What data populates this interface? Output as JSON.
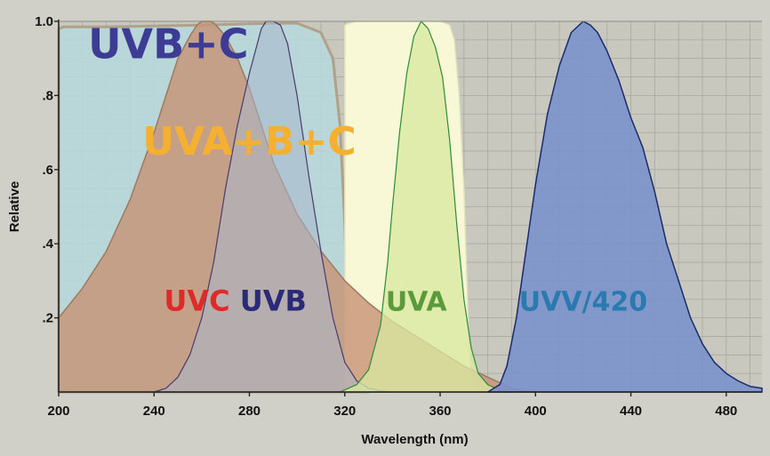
{
  "chart_data": {
    "type": "area",
    "xlabel": "Wavelength (nm)",
    "ylabel": "Relative",
    "xlim": [
      200,
      495
    ],
    "ylim": [
      0,
      1.0
    ],
    "x_ticks": [
      200,
      240,
      280,
      320,
      360,
      400,
      440,
      480
    ],
    "x_tick_labels": [
      "200",
      "240",
      "280",
      "320",
      "360",
      "400",
      "440",
      "480"
    ],
    "y_ticks": [
      0.2,
      0.4,
      0.6,
      0.8,
      1.0
    ],
    "y_tick_labels": [
      ".2",
      ".4",
      ".6",
      ".8",
      "1.0"
    ],
    "grid": true,
    "colors": {
      "background": "#d0d0c8",
      "plot_bg": "#c8c8be",
      "grid": "#a8a8a0"
    },
    "series": [
      {
        "id": "uvbc",
        "fill": "#b7d7dc",
        "stroke": "#b0a188",
        "opacity": 0.9,
        "stroke_width": 3,
        "x": [
          200,
          202,
          220,
          260,
          290,
          300,
          310,
          315,
          318,
          320,
          321,
          322,
          323,
          324,
          326,
          330
        ],
        "y": [
          0.98,
          0.985,
          0.985,
          0.99,
          0.995,
          0.995,
          0.97,
          0.9,
          0.72,
          0.45,
          0.25,
          0.12,
          0.05,
          0.02,
          0.005,
          0
        ]
      },
      {
        "id": "uvabc",
        "fill": "#fbfbd8",
        "stroke": "#e0e0bc",
        "opacity": 0.95,
        "stroke_width": 1.5,
        "x": [
          320,
          322,
          325,
          330,
          335,
          340,
          345,
          350,
          355,
          360,
          364,
          366,
          368,
          370,
          371,
          372,
          373,
          374,
          376,
          378,
          380
        ],
        "y": [
          0.99,
          0.995,
          1.0,
          1.0,
          1.0,
          1.0,
          1.0,
          1.0,
          1.0,
          1.0,
          0.99,
          0.95,
          0.8,
          0.55,
          0.35,
          0.15,
          0.05,
          0.01,
          0.003,
          0.001,
          0
        ]
      },
      {
        "id": "uvc",
        "fill": "#c89478",
        "stroke": "#9c7a62",
        "opacity": 0.82,
        "stroke_width": 1.5,
        "x": [
          200,
          210,
          220,
          230,
          240,
          245,
          250,
          255,
          258,
          260,
          264,
          266,
          270,
          275,
          280,
          285,
          290,
          300,
          310,
          320,
          330,
          340,
          350,
          360,
          370,
          380,
          390,
          395,
          400
        ],
        "y": [
          0.2,
          0.28,
          0.38,
          0.52,
          0.7,
          0.8,
          0.9,
          0.96,
          0.99,
          1.0,
          1.0,
          0.99,
          0.96,
          0.9,
          0.82,
          0.72,
          0.62,
          0.48,
          0.38,
          0.3,
          0.24,
          0.19,
          0.15,
          0.11,
          0.07,
          0.04,
          0.01,
          0.003,
          0
        ]
      },
      {
        "id": "uvb",
        "fill": "#aab8cc",
        "stroke": "#4a3a6a",
        "opacity": 0.55,
        "stroke_width": 1.2,
        "x": [
          240,
          245,
          250,
          255,
          260,
          265,
          270,
          275,
          280,
          285,
          287,
          290,
          293,
          296,
          300,
          305,
          310,
          315,
          320,
          325,
          330,
          335,
          340
        ],
        "y": [
          0,
          0.01,
          0.04,
          0.1,
          0.2,
          0.35,
          0.55,
          0.72,
          0.86,
          0.98,
          1.0,
          1.0,
          0.99,
          0.94,
          0.8,
          0.58,
          0.38,
          0.2,
          0.08,
          0.03,
          0.01,
          0.003,
          0
        ]
      },
      {
        "id": "uva",
        "fill": "#d8e8a0",
        "stroke": "#2e8a3a",
        "opacity": 0.78,
        "stroke_width": 1.2,
        "x": [
          318,
          325,
          330,
          335,
          338,
          340,
          343,
          346,
          349,
          352,
          355,
          358,
          361,
          364,
          367,
          370,
          373,
          376,
          380,
          385,
          390
        ],
        "y": [
          0,
          0.02,
          0.06,
          0.18,
          0.35,
          0.5,
          0.7,
          0.86,
          0.96,
          1.0,
          0.98,
          0.93,
          0.85,
          0.68,
          0.45,
          0.25,
          0.12,
          0.05,
          0.02,
          0.005,
          0
        ]
      },
      {
        "id": "uvv420",
        "fill": "#7a92cc",
        "stroke": "#1c2a6a",
        "opacity": 0.9,
        "stroke_width": 1.5,
        "x": [
          380,
          385,
          388,
          392,
          396,
          400,
          405,
          410,
          415,
          420,
          423,
          426,
          430,
          435,
          440,
          445,
          450,
          455,
          460,
          465,
          470,
          475,
          480,
          485,
          490,
          495
        ],
        "y": [
          0,
          0.02,
          0.07,
          0.2,
          0.38,
          0.56,
          0.75,
          0.88,
          0.97,
          1.0,
          0.99,
          0.97,
          0.92,
          0.84,
          0.74,
          0.66,
          0.54,
          0.4,
          0.3,
          0.2,
          0.13,
          0.08,
          0.05,
          0.03,
          0.015,
          0.01
        ]
      }
    ],
    "annotations": [
      {
        "id": "uvbc",
        "text": "UVB+C",
        "color": "#3c3c94",
        "x": 246,
        "y": 0.9,
        "size": 46
      },
      {
        "id": "uvabc",
        "text": "UVA+B+C",
        "color": "#f6b030",
        "x": 280,
        "y": 0.64,
        "size": 44
      },
      {
        "id": "uvc",
        "text": "UVC",
        "color": "#e02a2a",
        "x": 258,
        "y": 0.22,
        "size": 32
      },
      {
        "id": "uvb",
        "text": "UVB",
        "color": "#2a2a78",
        "x": 290,
        "y": 0.22,
        "size": 32
      },
      {
        "id": "uva",
        "text": "UVA",
        "color": "#5a9a3a",
        "x": 350,
        "y": 0.22,
        "size": 30
      },
      {
        "id": "uvv420",
        "text": "UVV/420",
        "color": "#2a7ab0",
        "x": 420,
        "y": 0.22,
        "size": 30
      }
    ]
  }
}
